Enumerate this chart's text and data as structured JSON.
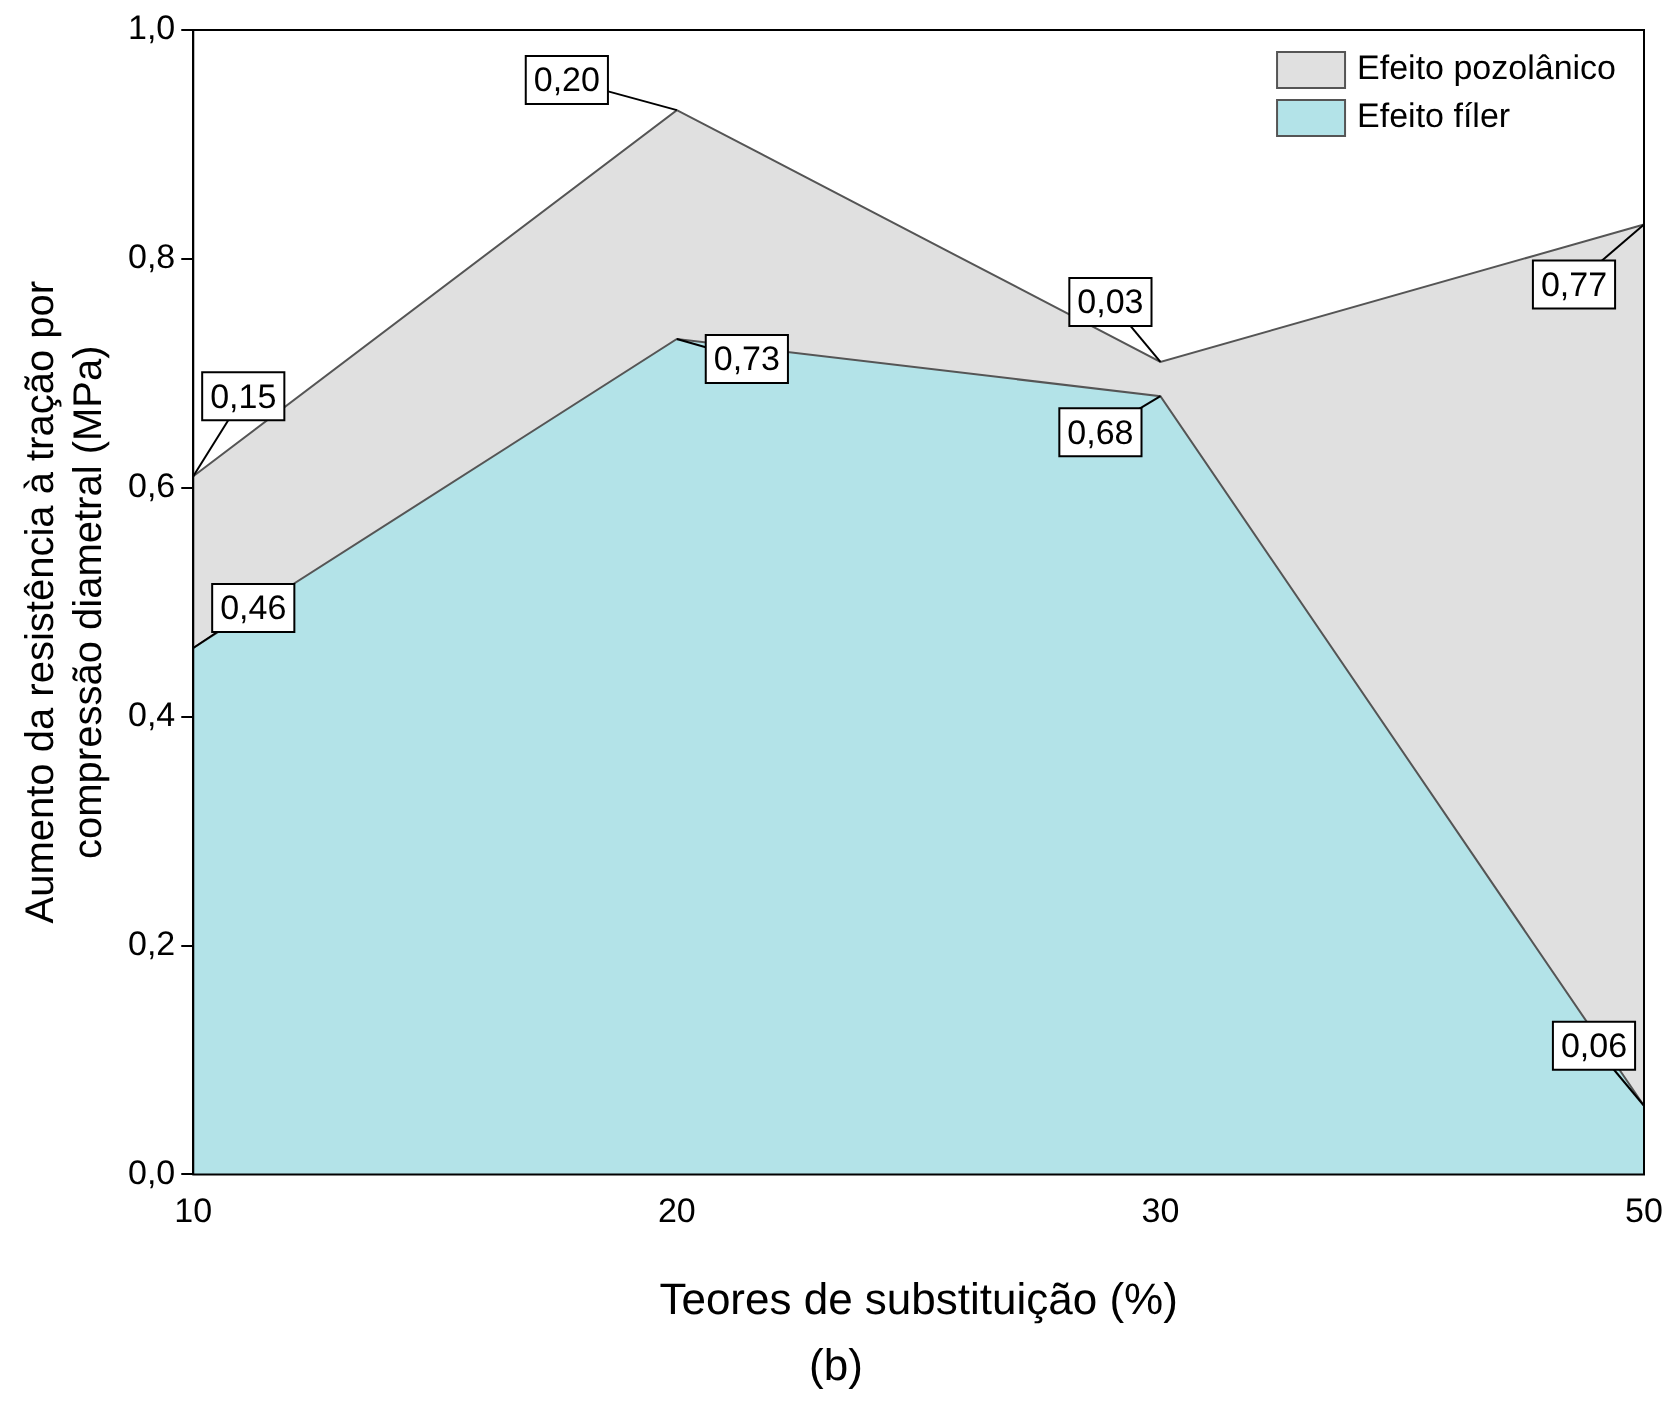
{
  "chart_data": {
    "type": "area",
    "categories": [
      "10",
      "20",
      "30",
      "50"
    ],
    "series": [
      {
        "name": "Efeito fíler",
        "color": "#b3e3e8",
        "values": [
          0.46,
          0.73,
          0.68,
          0.06
        ],
        "value_labels": [
          "0,46",
          "0,73",
          "0,68",
          "0,06"
        ]
      },
      {
        "name": "Efeito pozolânico",
        "color": "#e0e0e0",
        "values": [
          0.15,
          0.2,
          0.03,
          0.77
        ],
        "value_labels": [
          "0,15",
          "0,20",
          "0,03",
          "0,77"
        ]
      }
    ],
    "stacked": true,
    "legend": "top right",
    "grid": false,
    "ylim": [
      0,
      1
    ],
    "yticks": [
      {
        "value": 0,
        "label": "0,0"
      },
      {
        "value": 0.2,
        "label": "0,2"
      },
      {
        "value": 0.4,
        "label": "0,4"
      },
      {
        "value": 0.6,
        "label": "0,6"
      },
      {
        "value": 0.8,
        "label": "0,8"
      },
      {
        "value": 1,
        "label": "1,0"
      }
    ],
    "xlabel": "Teores de substituição (%)",
    "ylabel": "Aumento da resistência à tração por\ncompressão diametral (MPa)",
    "annotations": [
      "(b)"
    ]
  }
}
